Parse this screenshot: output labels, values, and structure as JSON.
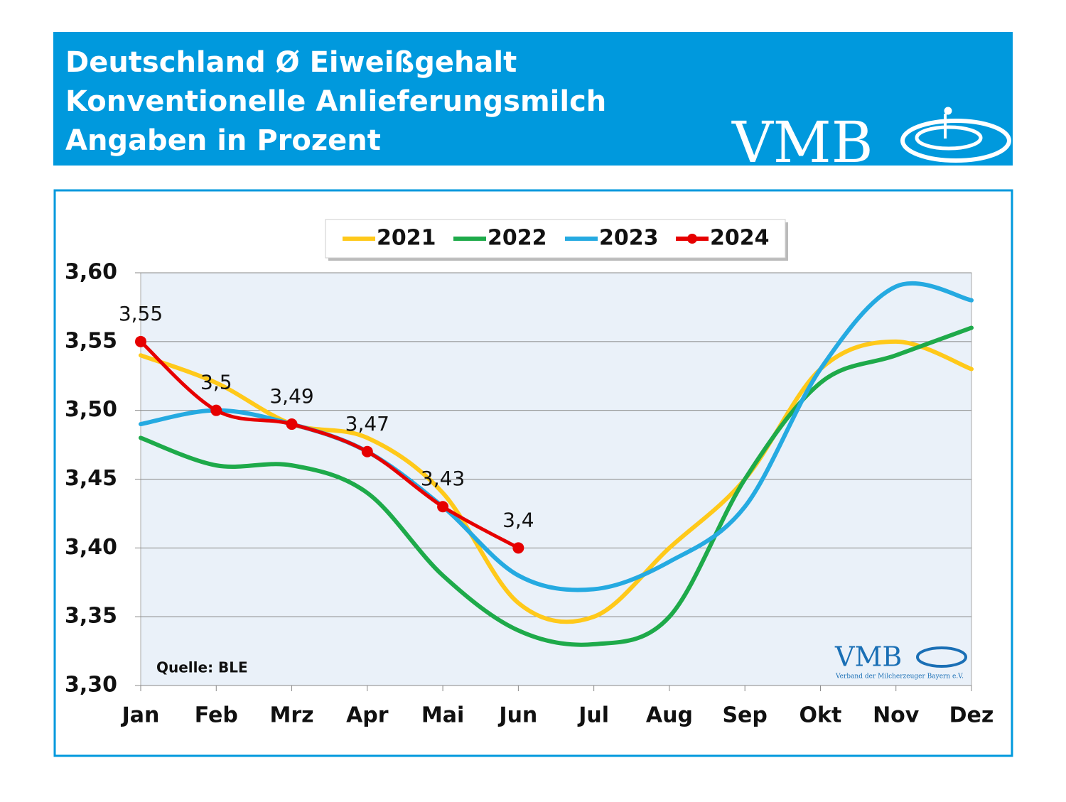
{
  "header": {
    "lines": [
      "Deutschland Ø Eiweißgehalt",
      "Konventionelle Anlieferungsmilch",
      "Angaben in Prozent"
    ],
    "logo": "VMB"
  },
  "chart_data": {
    "type": "line",
    "categories": [
      "Jan",
      "Feb",
      "Mrz",
      "Apr",
      "Mai",
      "Jun",
      "Jul",
      "Aug",
      "Sep",
      "Okt",
      "Nov",
      "Dez"
    ],
    "series": [
      {
        "name": "2021",
        "color": "#ffc91a",
        "values": [
          3.54,
          3.52,
          3.49,
          3.48,
          3.44,
          3.36,
          3.35,
          3.4,
          3.45,
          3.53,
          3.55,
          3.53
        ]
      },
      {
        "name": "2022",
        "color": "#1eaa4a",
        "values": [
          3.48,
          3.46,
          3.46,
          3.44,
          3.38,
          3.34,
          3.33,
          3.35,
          3.45,
          3.52,
          3.54,
          3.56
        ]
      },
      {
        "name": "2023",
        "color": "#25aae1",
        "values": [
          3.49,
          3.5,
          3.49,
          3.47,
          3.43,
          3.38,
          3.37,
          3.39,
          3.43,
          3.53,
          3.59,
          3.58
        ]
      },
      {
        "name": "2024",
        "color": "#e60000",
        "markers": true,
        "values": [
          3.55,
          3.5,
          3.49,
          3.47,
          3.43,
          3.4,
          null,
          null,
          null,
          null,
          null,
          null
        ],
        "value_labels": [
          "3,55",
          "3,5",
          "3,49",
          "3,47",
          "3,43",
          "3,4",
          null,
          null,
          null,
          null,
          null,
          null
        ]
      }
    ],
    "ylim": [
      3.3,
      3.6
    ],
    "yticks": [
      {
        "value": 3.3,
        "label": "3,30"
      },
      {
        "value": 3.35,
        "label": "3,35"
      },
      {
        "value": 3.4,
        "label": "3,40"
      },
      {
        "value": 3.45,
        "label": "3,45"
      },
      {
        "value": 3.5,
        "label": "3,50"
      },
      {
        "value": 3.55,
        "label": "3,55"
      },
      {
        "value": 3.6,
        "label": "3,60"
      }
    ],
    "grid": true,
    "legend": "top",
    "annotation": "Quelle: BLE",
    "watermark": {
      "logo": "VMB",
      "text": "Verband der Milcherzeuger Bayern e.V."
    }
  }
}
